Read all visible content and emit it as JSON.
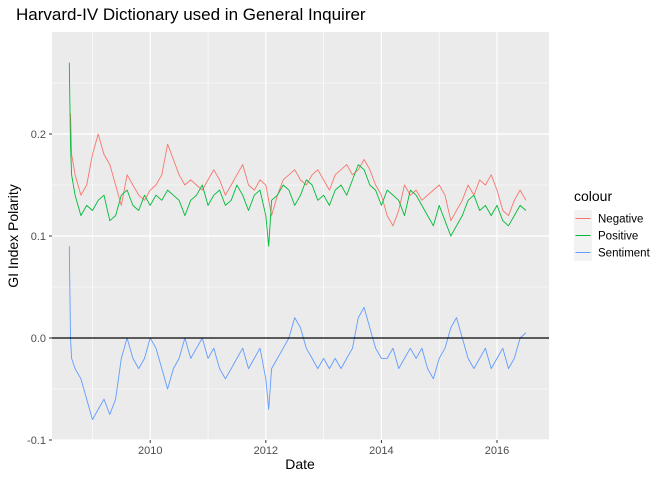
{
  "chart_data": {
    "type": "line",
    "title": "Harvard-IV Dictionary used in General Inquirer",
    "xlabel": "Date",
    "ylabel": "GI Index Polarity",
    "xlim": [
      2008.3,
      2016.9
    ],
    "ylim": [
      -0.1,
      0.3
    ],
    "x_ticks": [
      2010,
      2012,
      2014,
      2016
    ],
    "x_tick_labels": [
      "2010",
      "2012",
      "2014",
      "2016"
    ],
    "y_ticks": [
      -0.1,
      0.0,
      0.1,
      0.2
    ],
    "y_tick_labels": [
      "-0.1",
      "0.0",
      "0.1",
      "0.2"
    ],
    "hline": 0.0,
    "grid": true,
    "legend": {
      "title": "colour",
      "position": "right"
    },
    "series": [
      {
        "name": "Negative",
        "color": "#F8766D",
        "x": [
          2008.62,
          2008.64,
          2008.7,
          2008.8,
          2008.9,
          2009.0,
          2009.1,
          2009.2,
          2009.3,
          2009.4,
          2009.5,
          2009.6,
          2009.7,
          2009.8,
          2009.9,
          2010.0,
          2010.1,
          2010.2,
          2010.3,
          2010.4,
          2010.5,
          2010.6,
          2010.7,
          2010.8,
          2010.9,
          2011.0,
          2011.1,
          2011.2,
          2011.3,
          2011.4,
          2011.5,
          2011.6,
          2011.7,
          2011.8,
          2011.9,
          2012.0,
          2012.1,
          2012.2,
          2012.3,
          2012.4,
          2012.5,
          2012.6,
          2012.7,
          2012.8,
          2012.9,
          2013.0,
          2013.1,
          2013.2,
          2013.3,
          2013.4,
          2013.5,
          2013.6,
          2013.7,
          2013.8,
          2013.9,
          2014.0,
          2014.1,
          2014.2,
          2014.3,
          2014.4,
          2014.5,
          2014.6,
          2014.7,
          2014.8,
          2014.9,
          2015.0,
          2015.1,
          2015.2,
          2015.3,
          2015.4,
          2015.5,
          2015.6,
          2015.7,
          2015.8,
          2015.9,
          2016.0,
          2016.1,
          2016.2,
          2016.3,
          2016.4,
          2016.5
        ],
        "y": [
          0.22,
          0.18,
          0.16,
          0.14,
          0.15,
          0.18,
          0.2,
          0.18,
          0.17,
          0.15,
          0.13,
          0.16,
          0.15,
          0.14,
          0.135,
          0.145,
          0.15,
          0.16,
          0.19,
          0.175,
          0.16,
          0.15,
          0.155,
          0.15,
          0.145,
          0.155,
          0.165,
          0.155,
          0.14,
          0.15,
          0.16,
          0.17,
          0.15,
          0.145,
          0.155,
          0.15,
          0.12,
          0.14,
          0.155,
          0.16,
          0.165,
          0.155,
          0.15,
          0.16,
          0.165,
          0.155,
          0.145,
          0.16,
          0.165,
          0.17,
          0.16,
          0.165,
          0.175,
          0.165,
          0.15,
          0.14,
          0.12,
          0.11,
          0.125,
          0.15,
          0.14,
          0.145,
          0.135,
          0.14,
          0.145,
          0.15,
          0.14,
          0.115,
          0.125,
          0.135,
          0.15,
          0.14,
          0.155,
          0.15,
          0.16,
          0.145,
          0.125,
          0.12,
          0.135,
          0.145,
          0.135
        ]
      },
      {
        "name": "Positive",
        "color": "#00BA38",
        "x": [
          2008.6,
          2008.62,
          2008.64,
          2008.7,
          2008.8,
          2008.9,
          2009.0,
          2009.1,
          2009.2,
          2009.3,
          2009.4,
          2009.5,
          2009.6,
          2009.7,
          2009.8,
          2009.9,
          2010.0,
          2010.1,
          2010.2,
          2010.3,
          2010.4,
          2010.5,
          2010.6,
          2010.7,
          2010.8,
          2010.9,
          2011.0,
          2011.1,
          2011.2,
          2011.3,
          2011.4,
          2011.5,
          2011.6,
          2011.7,
          2011.8,
          2011.9,
          2012.0,
          2012.05,
          2012.1,
          2012.2,
          2012.3,
          2012.4,
          2012.5,
          2012.6,
          2012.7,
          2012.8,
          2012.9,
          2013.0,
          2013.1,
          2013.2,
          2013.3,
          2013.4,
          2013.5,
          2013.6,
          2013.7,
          2013.8,
          2013.9,
          2014.0,
          2014.1,
          2014.2,
          2014.3,
          2014.4,
          2014.5,
          2014.6,
          2014.7,
          2014.8,
          2014.9,
          2015.0,
          2015.1,
          2015.2,
          2015.3,
          2015.4,
          2015.5,
          2015.6,
          2015.7,
          2015.8,
          2015.9,
          2016.0,
          2016.1,
          2016.2,
          2016.3,
          2016.4,
          2016.5
        ],
        "y": [
          0.27,
          0.19,
          0.16,
          0.14,
          0.12,
          0.13,
          0.125,
          0.135,
          0.14,
          0.115,
          0.12,
          0.14,
          0.145,
          0.13,
          0.125,
          0.14,
          0.13,
          0.14,
          0.135,
          0.145,
          0.14,
          0.135,
          0.12,
          0.135,
          0.14,
          0.15,
          0.13,
          0.14,
          0.145,
          0.13,
          0.135,
          0.15,
          0.14,
          0.125,
          0.14,
          0.145,
          0.12,
          0.09,
          0.135,
          0.14,
          0.15,
          0.145,
          0.13,
          0.14,
          0.155,
          0.15,
          0.135,
          0.14,
          0.13,
          0.145,
          0.15,
          0.14,
          0.155,
          0.17,
          0.165,
          0.15,
          0.145,
          0.13,
          0.145,
          0.14,
          0.135,
          0.12,
          0.145,
          0.14,
          0.13,
          0.12,
          0.11,
          0.13,
          0.115,
          0.1,
          0.11,
          0.12,
          0.135,
          0.14,
          0.125,
          0.13,
          0.12,
          0.13,
          0.115,
          0.11,
          0.12,
          0.13,
          0.125
        ]
      },
      {
        "name": "Sentiment",
        "color": "#619CFF",
        "x": [
          2008.6,
          2008.62,
          2008.64,
          2008.7,
          2008.8,
          2008.9,
          2009.0,
          2009.1,
          2009.2,
          2009.3,
          2009.4,
          2009.5,
          2009.6,
          2009.7,
          2009.8,
          2009.9,
          2010.0,
          2010.1,
          2010.2,
          2010.3,
          2010.4,
          2010.5,
          2010.6,
          2010.7,
          2010.8,
          2010.9,
          2011.0,
          2011.1,
          2011.2,
          2011.3,
          2011.4,
          2011.5,
          2011.6,
          2011.7,
          2011.8,
          2011.9,
          2012.0,
          2012.05,
          2012.1,
          2012.2,
          2012.3,
          2012.4,
          2012.5,
          2012.6,
          2012.7,
          2012.8,
          2012.9,
          2013.0,
          2013.1,
          2013.2,
          2013.3,
          2013.4,
          2013.5,
          2013.6,
          2013.7,
          2013.8,
          2013.9,
          2014.0,
          2014.1,
          2014.2,
          2014.3,
          2014.4,
          2014.5,
          2014.6,
          2014.7,
          2014.8,
          2014.9,
          2015.0,
          2015.1,
          2015.2,
          2015.3,
          2015.4,
          2015.5,
          2015.6,
          2015.7,
          2015.8,
          2015.9,
          2016.0,
          2016.1,
          2016.2,
          2016.3,
          2016.4,
          2016.5
        ],
        "y": [
          0.09,
          0.0,
          -0.02,
          -0.03,
          -0.04,
          -0.06,
          -0.08,
          -0.07,
          -0.06,
          -0.075,
          -0.06,
          -0.02,
          0.0,
          -0.02,
          -0.03,
          -0.02,
          0.0,
          -0.01,
          -0.03,
          -0.05,
          -0.03,
          -0.02,
          0.0,
          -0.02,
          -0.01,
          0.0,
          -0.02,
          -0.01,
          -0.03,
          -0.04,
          -0.03,
          -0.02,
          -0.01,
          -0.03,
          -0.02,
          -0.01,
          -0.04,
          -0.07,
          -0.03,
          -0.02,
          -0.01,
          0.0,
          0.02,
          0.01,
          -0.01,
          -0.02,
          -0.03,
          -0.02,
          -0.03,
          -0.02,
          -0.03,
          -0.02,
          -0.01,
          0.02,
          0.03,
          0.01,
          -0.01,
          -0.02,
          -0.02,
          -0.01,
          -0.03,
          -0.02,
          -0.01,
          -0.02,
          -0.01,
          -0.03,
          -0.04,
          -0.02,
          -0.01,
          0.01,
          0.02,
          0.0,
          -0.02,
          -0.03,
          -0.02,
          -0.01,
          -0.03,
          -0.02,
          -0.01,
          -0.03,
          -0.02,
          0.0,
          0.005
        ]
      }
    ]
  }
}
